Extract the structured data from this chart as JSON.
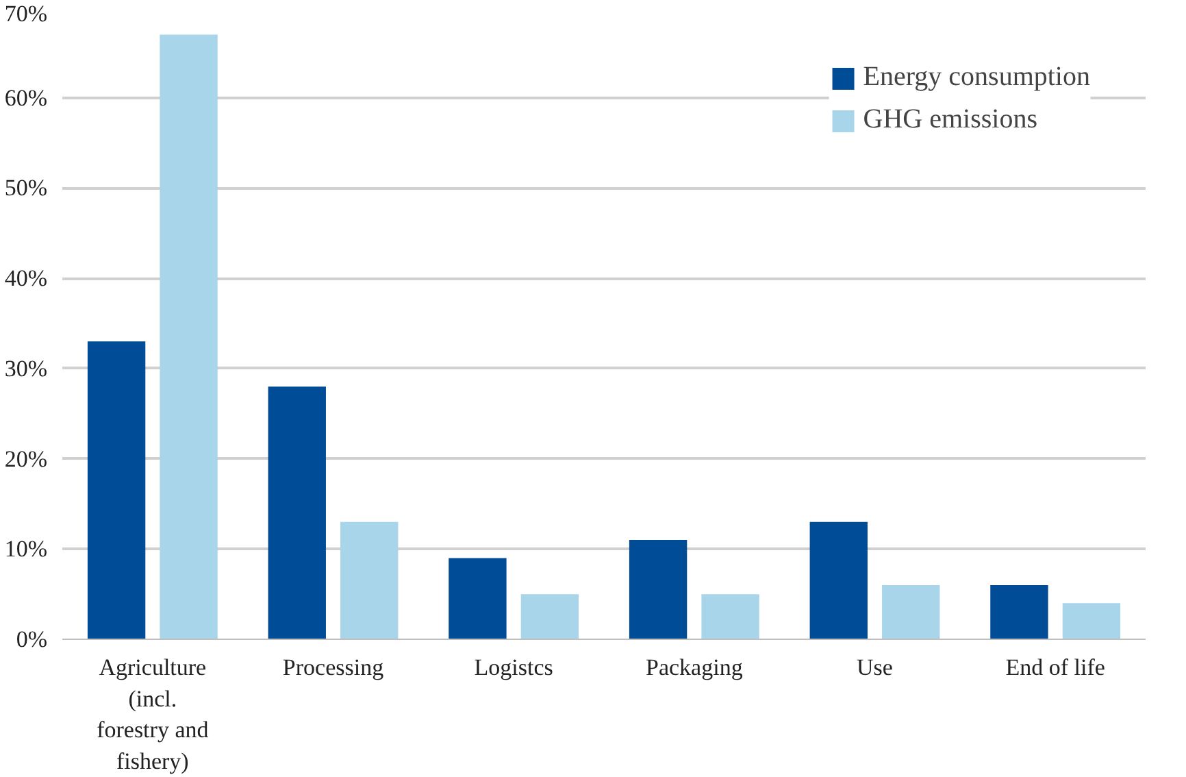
{
  "chart_data": {
    "type": "bar",
    "categories": [
      "Agriculture (incl. forestry and fishery)",
      "Processing",
      "Logistcs",
      "Packaging",
      "Use",
      "End of life"
    ],
    "series": [
      {
        "name": "Energy consumption",
        "color": "#004c97",
        "values": [
          33,
          28,
          9,
          11,
          13,
          6
        ]
      },
      {
        "name": "GHG emissions",
        "color": "#a9d5ea",
        "values": [
          67,
          13,
          5,
          5,
          6,
          4
        ]
      }
    ],
    "ylim": [
      0,
      70
    ],
    "yticks": [
      {
        "value": 0,
        "label": "0%"
      },
      {
        "value": 10,
        "label": "10%"
      },
      {
        "value": 20,
        "label": "20%"
      },
      {
        "value": 30,
        "label": "30%"
      },
      {
        "value": 40,
        "label": "40%"
      },
      {
        "value": 50,
        "label": "50%"
      },
      {
        "value": 60,
        "label": "60%"
      },
      {
        "value": 70,
        "label": "70%"
      }
    ],
    "grid": "y",
    "legend": "top right"
  }
}
